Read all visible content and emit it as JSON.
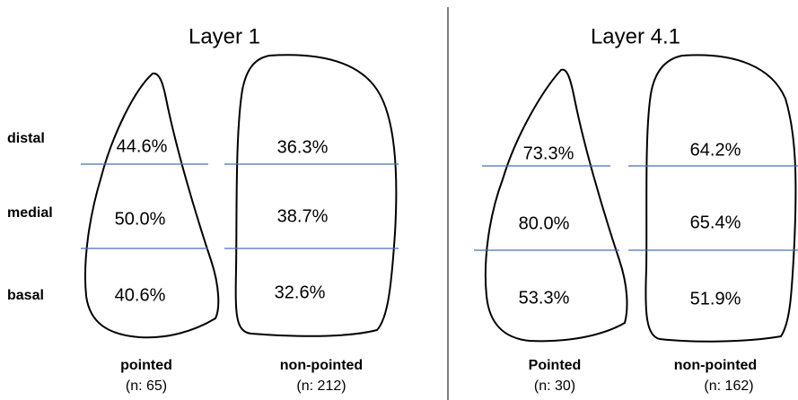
{
  "row_labels": [
    "distal",
    "medial",
    "basal"
  ],
  "panels": [
    {
      "title": "Layer 1",
      "shapes": [
        {
          "label": "pointed",
          "n": "(n: 65)",
          "values": [
            "44.6%",
            "50.0%",
            "40.6%"
          ]
        },
        {
          "label": "non-pointed",
          "n": "(n: 212)",
          "values": [
            "36.3%",
            "38.7%",
            "32.6%"
          ]
        }
      ]
    },
    {
      "title": "Layer 4.1",
      "shapes": [
        {
          "label": "Pointed",
          "n": "(n: 30)",
          "values": [
            "73.3%",
            "80.0%",
            "53.3%"
          ]
        },
        {
          "label": "non-pointed",
          "n": "(n: 162)",
          "values": [
            "64.2%",
            "65.4%",
            "51.9%"
          ]
        }
      ]
    }
  ]
}
